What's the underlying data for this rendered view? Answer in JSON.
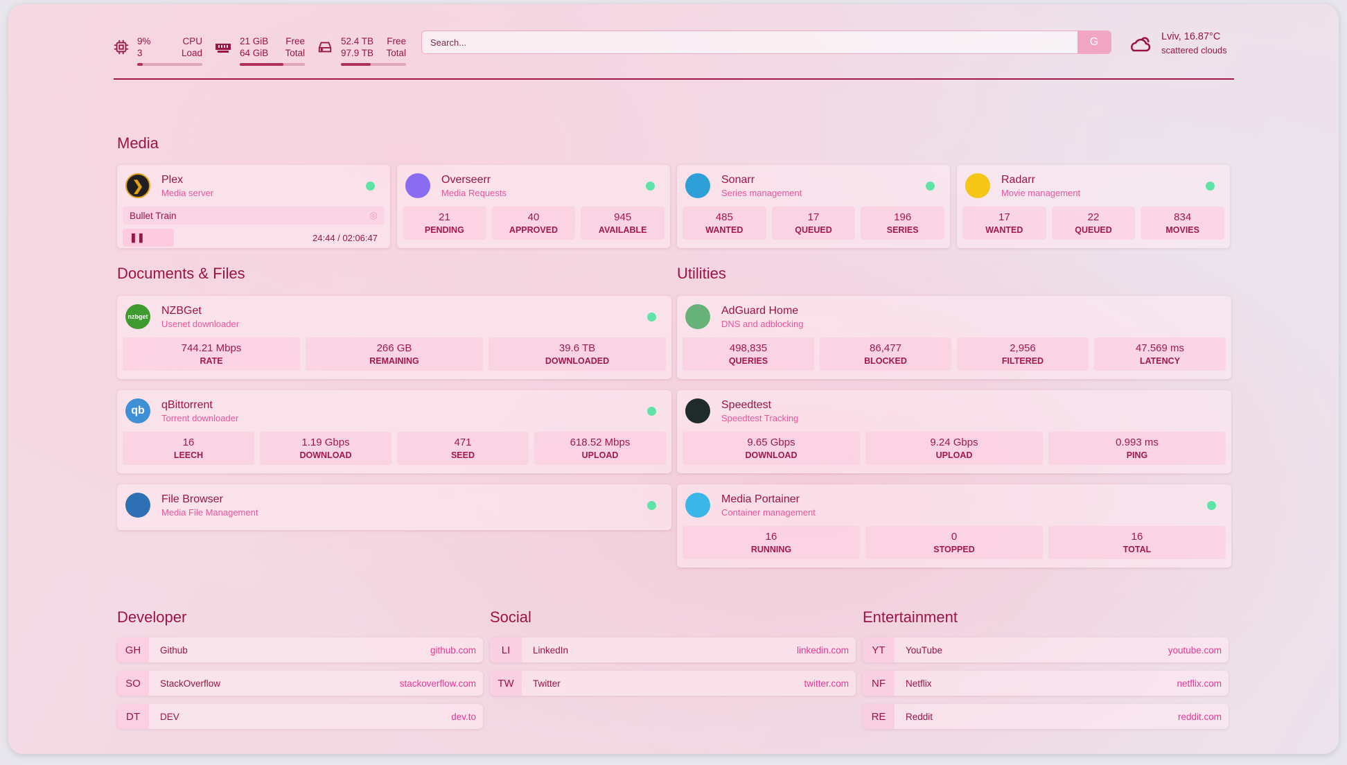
{
  "resources": {
    "cpu": {
      "icon": "cpu-icon",
      "value": "9%",
      "load": "3",
      "label1": "CPU",
      "label2": "Load",
      "percent": 9
    },
    "memory": {
      "icon": "memory-icon",
      "free": "21 GiB",
      "total": "64 GiB",
      "label1": "Free",
      "label2": "Total",
      "percent": 67
    },
    "disk": {
      "icon": "disk-icon",
      "free": "52.4 TB",
      "total": "97.9 TB",
      "label1": "Free",
      "label2": "Total",
      "percent": 46
    }
  },
  "search": {
    "placeholder": "Search...",
    "button": "G"
  },
  "weather": {
    "icon": "cloud-icon",
    "location": "Lviv, 16.87°C",
    "condition": "scattered clouds"
  },
  "colors": {
    "primary": "#9b1446",
    "accent": "#e8559c",
    "status_up": "#5fe3a7"
  },
  "groups": {
    "media": "Media",
    "documents": "Documents & Files",
    "utilities": "Utilities",
    "developer": "Developer",
    "social": "Social",
    "entertainment": "Entertainment"
  },
  "plex": {
    "title": "Plex",
    "subtitle": "Media server",
    "now_playing": "Bullet Train",
    "time": "24:44 / 02:06:47",
    "progress_percent": 19.6
  },
  "services": [
    {
      "id": "overseerr",
      "title": "Overseerr",
      "subtitle": "Media Requests",
      "icon": "overseerr-icon",
      "color": "#8a6cf0",
      "stats": [
        {
          "v": "21",
          "l": "PENDING"
        },
        {
          "v": "40",
          "l": "APPROVED"
        },
        {
          "v": "945",
          "l": "AVAILABLE"
        }
      ],
      "dot": true
    },
    {
      "id": "sonarr",
      "title": "Sonarr",
      "subtitle": "Series management",
      "icon": "sonarr-icon",
      "color": "#2f9fd8",
      "stats": [
        {
          "v": "485",
          "l": "WANTED"
        },
        {
          "v": "17",
          "l": "QUEUED"
        },
        {
          "v": "196",
          "l": "SERIES"
        }
      ],
      "dot": true
    },
    {
      "id": "radarr",
      "title": "Radarr",
      "subtitle": "Movie management",
      "icon": "radarr-icon",
      "color": "#f5c518",
      "stats": [
        {
          "v": "17",
          "l": "WANTED"
        },
        {
          "v": "22",
          "l": "QUEUED"
        },
        {
          "v": "834",
          "l": "MOVIES"
        }
      ],
      "dot": true
    },
    {
      "id": "nzbget",
      "title": "NZBGet",
      "subtitle": "Usenet downloader",
      "icon": "nzbget-icon",
      "icon_text": "nzbget",
      "color": "#3f9b2f",
      "stats": [
        {
          "v": "744.21 Mbps",
          "l": "RATE"
        },
        {
          "v": "266 GB",
          "l": "REMAINING"
        },
        {
          "v": "39.6 TB",
          "l": "DOWNLOADED"
        }
      ],
      "dot": true
    },
    {
      "id": "qbittorrent",
      "title": "qBittorrent",
      "subtitle": "Torrent downloader",
      "icon": "qbittorrent-icon",
      "icon_text": "qb",
      "color": "#3d8fd6",
      "stats": [
        {
          "v": "16",
          "l": "LEECH"
        },
        {
          "v": "1.19 Gbps",
          "l": "DOWNLOAD"
        },
        {
          "v": "471",
          "l": "SEED"
        },
        {
          "v": "618.52 Mbps",
          "l": "UPLOAD"
        }
      ],
      "dot": true
    },
    {
      "id": "filebrowser",
      "title": "File Browser",
      "subtitle": "Media File Management",
      "icon": "file-browser-icon",
      "color": "#2f6fb3",
      "stats": [],
      "dot": true
    },
    {
      "id": "adguard",
      "title": "AdGuard Home",
      "subtitle": "DNS and adblocking",
      "icon": "adguard-shield-icon",
      "color": "#67b279",
      "stats": [
        {
          "v": "498,835",
          "l": "QUERIES"
        },
        {
          "v": "86,477",
          "l": "BLOCKED"
        },
        {
          "v": "2,956",
          "l": "FILTERED"
        },
        {
          "v": "47.569 ms",
          "l": "LATENCY"
        }
      ],
      "dot": false
    },
    {
      "id": "speedtest",
      "title": "Speedtest",
      "subtitle": "Speedtest Tracking",
      "icon": "speedtest-icon",
      "color": "#1f2b2a",
      "stats": [
        {
          "v": "9.65 Gbps",
          "l": "DOWNLOAD"
        },
        {
          "v": "9.24 Gbps",
          "l": "UPLOAD"
        },
        {
          "v": "0.993 ms",
          "l": "PING"
        }
      ],
      "dot": false
    },
    {
      "id": "portainer",
      "title": "Media Portainer",
      "subtitle": "Container management",
      "icon": "portainer-icon",
      "color": "#3bb6e8",
      "stats": [
        {
          "v": "16",
          "l": "RUNNING"
        },
        {
          "v": "0",
          "l": "STOPPED"
        },
        {
          "v": "16",
          "l": "TOTAL"
        }
      ],
      "dot": true
    }
  ],
  "bookmarks": {
    "developer": [
      {
        "abbr": "GH",
        "name": "Github",
        "url": "github.com"
      },
      {
        "abbr": "SO",
        "name": "StackOverflow",
        "url": "stackoverflow.com"
      },
      {
        "abbr": "DT",
        "name": "DEV",
        "url": "dev.to"
      }
    ],
    "social": [
      {
        "abbr": "LI",
        "name": "LinkedIn",
        "url": "linkedin.com"
      },
      {
        "abbr": "TW",
        "name": "Twitter",
        "url": "twitter.com"
      }
    ],
    "entertainment": [
      {
        "abbr": "YT",
        "name": "YouTube",
        "url": "youtube.com"
      },
      {
        "abbr": "NF",
        "name": "Netflix",
        "url": "netflix.com"
      },
      {
        "abbr": "RE",
        "name": "Reddit",
        "url": "reddit.com"
      }
    ]
  }
}
